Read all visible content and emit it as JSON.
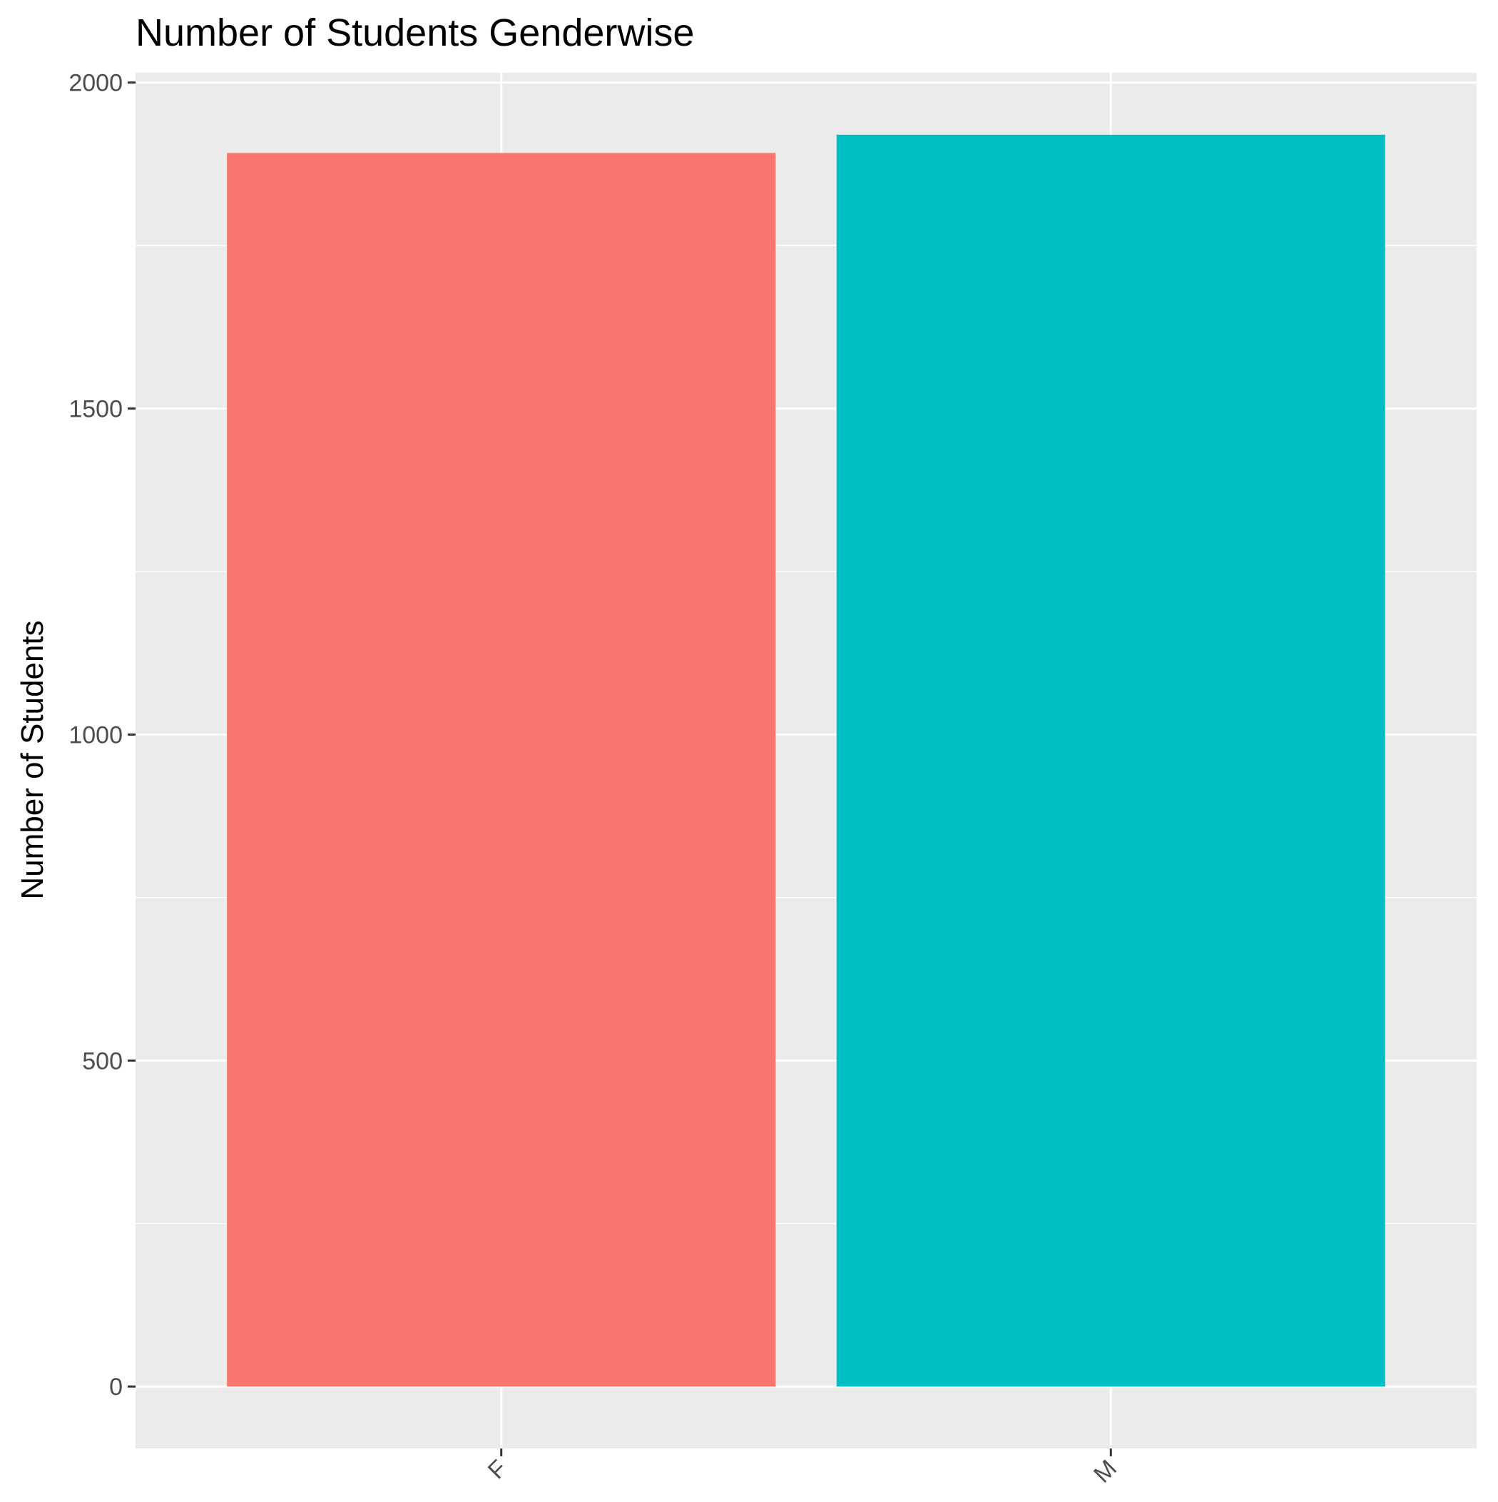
{
  "chart_data": {
    "type": "bar",
    "title": "Number of Students Genderwise",
    "xlabel": "",
    "ylabel": "Number of Students",
    "categories": [
      "F",
      "M"
    ],
    "values": [
      1892,
      1920
    ],
    "colors": [
      "#F8766D",
      "#00BFC4"
    ],
    "ylim": [
      -95,
      2015
    ],
    "yticks": [
      0,
      500,
      1000,
      1500,
      2000
    ],
    "ytick_labels": [
      "0",
      "500",
      "1000",
      "1500",
      "2000"
    ],
    "grid": true,
    "legend": "none",
    "panel_background": "#EBEBEB",
    "gridline_color": "#FFFFFF",
    "x_tick_label_rotation": "45 degrees"
  }
}
